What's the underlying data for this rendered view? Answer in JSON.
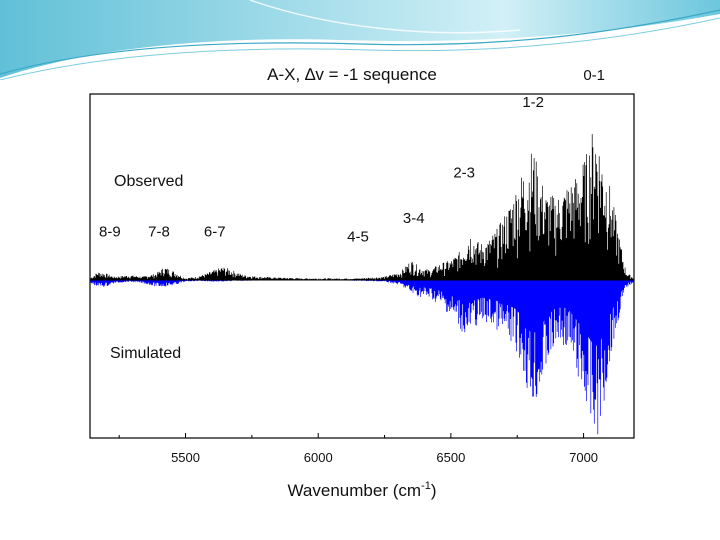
{
  "chart_data": {
    "type": "line",
    "title": "A-X, ∆v = -1 sequence",
    "xlabel": "Wavenumber (cm",
    "xlabel_sup": "-1",
    "xlabel_tail": ")",
    "xlim": [
      5140,
      7190
    ],
    "ylim": [
      -1.0,
      1.0
    ],
    "baseline": 0,
    "xticks": [
      5500,
      6000,
      6500,
      7000
    ],
    "xtick_labels": [
      "5500",
      "6000",
      "6500",
      "7000"
    ],
    "series": [
      {
        "name": "Observed",
        "color": "#000000",
        "direction": "up",
        "profile": [
          [
            5140,
            0.01
          ],
          [
            5170,
            0.05
          ],
          [
            5200,
            0.04
          ],
          [
            5230,
            0.02
          ],
          [
            5290,
            0.03
          ],
          [
            5340,
            0.02
          ],
          [
            5390,
            0.04
          ],
          [
            5420,
            0.08
          ],
          [
            5460,
            0.05
          ],
          [
            5500,
            0.01
          ],
          [
            5540,
            0.02
          ],
          [
            5580,
            0.04
          ],
          [
            5610,
            0.06
          ],
          [
            5640,
            0.08
          ],
          [
            5660,
            0.07
          ],
          [
            5690,
            0.05
          ],
          [
            5720,
            0.03
          ],
          [
            5780,
            0.02
          ],
          [
            5850,
            0.015
          ],
          [
            5950,
            0.01
          ],
          [
            6050,
            0.01
          ],
          [
            6150,
            0.01
          ],
          [
            6250,
            0.02
          ],
          [
            6310,
            0.05
          ],
          [
            6350,
            0.12
          ],
          [
            6380,
            0.08
          ],
          [
            6420,
            0.06
          ],
          [
            6460,
            0.1
          ],
          [
            6500,
            0.12
          ],
          [
            6540,
            0.18
          ],
          [
            6570,
            0.3
          ],
          [
            6590,
            0.25
          ],
          [
            6610,
            0.22
          ],
          [
            6640,
            0.24
          ],
          [
            6680,
            0.32
          ],
          [
            6720,
            0.45
          ],
          [
            6760,
            0.62
          ],
          [
            6790,
            0.72
          ],
          [
            6810,
            0.8
          ],
          [
            6830,
            0.65
          ],
          [
            6860,
            0.52
          ],
          [
            6900,
            0.5
          ],
          [
            6940,
            0.58
          ],
          [
            6980,
            0.64
          ],
          [
            7010,
            0.75
          ],
          [
            7030,
            0.88
          ],
          [
            7045,
            0.94
          ],
          [
            7070,
            0.75
          ],
          [
            7100,
            0.56
          ],
          [
            7130,
            0.3
          ],
          [
            7160,
            0.05
          ],
          [
            7190,
            0.01
          ]
        ]
      },
      {
        "name": "Simulated",
        "color": "#0000ff",
        "direction": "down",
        "profile": [
          [
            5140,
            0.02
          ],
          [
            5170,
            0.04
          ],
          [
            5200,
            0.04
          ],
          [
            5230,
            0.02
          ],
          [
            5290,
            0.01
          ],
          [
            5340,
            0.02
          ],
          [
            5390,
            0.04
          ],
          [
            5420,
            0.04
          ],
          [
            5460,
            0.03
          ],
          [
            5500,
            0.01
          ],
          [
            5550,
            0.005
          ],
          [
            5600,
            0.01
          ],
          [
            5640,
            0.01
          ],
          [
            5700,
            0.005
          ],
          [
            5800,
            0.003
          ],
          [
            5950,
            0.003
          ],
          [
            6100,
            0.003
          ],
          [
            6250,
            0.01
          ],
          [
            6310,
            0.03
          ],
          [
            6350,
            0.08
          ],
          [
            6380,
            0.1
          ],
          [
            6420,
            0.11
          ],
          [
            6460,
            0.15
          ],
          [
            6490,
            0.2
          ],
          [
            6530,
            0.28
          ],
          [
            6560,
            0.35
          ],
          [
            6590,
            0.28
          ],
          [
            6620,
            0.25
          ],
          [
            6660,
            0.28
          ],
          [
            6700,
            0.33
          ],
          [
            6740,
            0.4
          ],
          [
            6770,
            0.52
          ],
          [
            6800,
            0.75
          ],
          [
            6830,
            0.72
          ],
          [
            6860,
            0.52
          ],
          [
            6900,
            0.38
          ],
          [
            6940,
            0.4
          ],
          [
            6970,
            0.55
          ],
          [
            7000,
            0.7
          ],
          [
            7030,
            0.88
          ],
          [
            7050,
            0.94
          ],
          [
            7070,
            0.82
          ],
          [
            7100,
            0.48
          ],
          [
            7130,
            0.25
          ],
          [
            7160,
            0.05
          ],
          [
            7190,
            0.01
          ]
        ]
      }
    ],
    "annotations": [
      {
        "text": "8-9",
        "x": 5215,
        "y": 0.26
      },
      {
        "text": "7-8",
        "x": 5400,
        "y": 0.26
      },
      {
        "text": "6-7",
        "x": 5610,
        "y": 0.26
      },
      {
        "text": "4-5",
        "x": 6150,
        "y": 0.23
      },
      {
        "text": "3-4",
        "x": 6360,
        "y": 0.34
      },
      {
        "text": "2-3",
        "x": 6550,
        "y": 0.61
      },
      {
        "text": "1-2",
        "x": 6810,
        "y": 1.03
      },
      {
        "text": "0-1",
        "x": 7040,
        "y": 1.19
      }
    ],
    "labels": {
      "observed": "Observed",
      "simulated": "Simulated"
    }
  }
}
